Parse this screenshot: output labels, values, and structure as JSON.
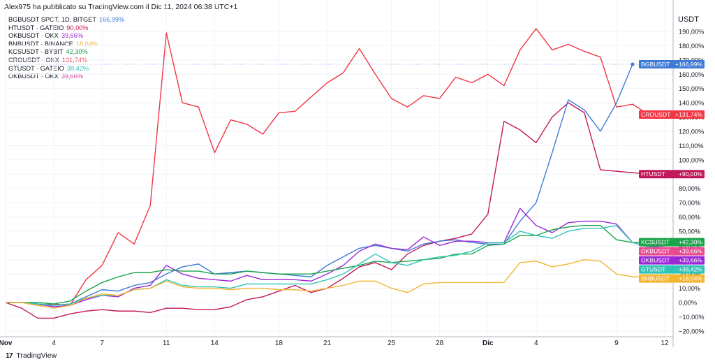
{
  "header": {
    "publisher_line": "Alex975 ha pubblicato su TradingView.com il Dic 11, 2024 06:38 UTC+1"
  },
  "legend": [
    {
      "name": "BGBUSDT SPOT, 1D, BITGET",
      "value": "166,99%",
      "color": "#3e7bd6"
    },
    {
      "name": "HTUSDT · GATEIO",
      "value": "90,00%",
      "color": "#c2185b"
    },
    {
      "name": "OKBUSDT · OKX",
      "value": "39,66%",
      "color": "#9c27d6"
    },
    {
      "name": "BNBUSDT · BINANCE",
      "value": "18,04%",
      "color": "#f5b531"
    },
    {
      "name": "KCSUSDT · BYBIT",
      "value": "42,30%",
      "color": "#1aa34a"
    },
    {
      "name": "CROUSDT · OKX",
      "value": "131,74%",
      "color": "#f23645"
    },
    {
      "name": "GTUSDT · GATEIO",
      "value": "38,42%",
      "color": "#2ec4b6"
    },
    {
      "name": "OKBUSDT · OKX",
      "value": "39,66%",
      "color": "#d3308f"
    }
  ],
  "footer": {
    "logo": "17",
    "brand": "TradingView"
  },
  "chart_data": {
    "type": "line",
    "y_unit_label": "USDT",
    "y_axis": {
      "min": -25,
      "max": 200,
      "ticks": [
        -20,
        -10,
        0,
        10,
        20,
        30,
        40,
        50,
        60,
        70,
        80,
        90,
        100,
        110,
        120,
        130,
        140,
        150,
        160,
        170,
        180,
        190
      ],
      "tick_labels": [
        "−20,00%",
        "−10,00%",
        "0,00%",
        "10,00%",
        "20,00%",
        "30,00%",
        "40,00%",
        "50,00%",
        "60,00%",
        "70,00%",
        "80,00%",
        "90,00%",
        "100,00%",
        "110,00%",
        "120,00%",
        "130,00%",
        "140,00%",
        "150,00%",
        "160,00%",
        "170,00%",
        "180,00%",
        "190,00%"
      ]
    },
    "x_axis": {
      "min": 0,
      "max": 41,
      "ticks": [
        {
          "day": 0,
          "label": "Nov"
        },
        {
          "day": 3,
          "label": "4"
        },
        {
          "day": 6,
          "label": "7"
        },
        {
          "day": 10,
          "label": "11"
        },
        {
          "day": 13,
          "label": "14"
        },
        {
          "day": 17,
          "label": "18"
        },
        {
          "day": 20,
          "label": "21"
        },
        {
          "day": 24,
          "label": "25"
        },
        {
          "day": 27,
          "label": "28"
        },
        {
          "day": 30,
          "label": "Dic"
        },
        {
          "day": 33,
          "label": "4"
        },
        {
          "day": 38,
          "label": "9"
        },
        {
          "day": 41,
          "label": "12"
        }
      ]
    },
    "crosshair_value": 166.99,
    "series": [
      {
        "name": "CROUSDT",
        "color": "#f23645",
        "values": [
          0,
          0,
          -2,
          -1,
          -2,
          16,
          26,
          49,
          41,
          68,
          189,
          140,
          137,
          105,
          128,
          125,
          118,
          133,
          134,
          144,
          154,
          161,
          178,
          160,
          143,
          137,
          145,
          143,
          158,
          154,
          160,
          152,
          177,
          192,
          177,
          181,
          176,
          172,
          137,
          139,
          131.74
        ]
      },
      {
        "name": "HTUSDT",
        "color": "#c2185b",
        "values": [
          0,
          -4,
          -11,
          -11,
          -8,
          -6,
          -5,
          -6,
          -6,
          -7,
          -4,
          -4,
          -5,
          -5,
          -3,
          2,
          4,
          8,
          12,
          7,
          10,
          17,
          25,
          28,
          23,
          34,
          40,
          43,
          45,
          48,
          62,
          127,
          121,
          112,
          130,
          140,
          133,
          93,
          92,
          91,
          90.0
        ]
      },
      {
        "name": "BGBUSDT",
        "color": "#3e7bd6",
        "values": [
          0,
          0,
          -1,
          -2,
          -1,
          4,
          9,
          8,
          12,
          14,
          20,
          25,
          27,
          20,
          21,
          22,
          21,
          20,
          19,
          18,
          26,
          32,
          38,
          40,
          38,
          36,
          41,
          43,
          44,
          42,
          41,
          41,
          57,
          70,
          105,
          142,
          135,
          120,
          140,
          166.99
        ]
      },
      {
        "name": "OKBUSDT",
        "color": "#9c27d6",
        "values": [
          0,
          0,
          -1,
          -3,
          -2,
          2,
          5,
          4,
          10,
          12,
          26,
          20,
          17,
          16,
          15,
          19,
          16,
          16,
          16,
          15,
          20,
          26,
          36,
          41,
          38,
          37,
          46,
          40,
          43,
          43,
          42,
          42,
          66,
          54,
          49,
          56,
          57,
          57,
          55,
          42,
          39,
          39.66
        ]
      },
      {
        "name": "KCSUSDT",
        "color": "#1aa34a",
        "values": [
          0,
          0,
          0,
          -1,
          1,
          8,
          14,
          18,
          21,
          21,
          23,
          22,
          22,
          20,
          20,
          22,
          21,
          20,
          20,
          20,
          22,
          24,
          26,
          29,
          28,
          29,
          30,
          31,
          34,
          34,
          40,
          41,
          47,
          47,
          51,
          53,
          54,
          54,
          44,
          42,
          42.3
        ]
      },
      {
        "name": "GTUSDT",
        "color": "#2ec4b6",
        "values": [
          0,
          0,
          -1,
          -2,
          -1,
          3,
          5,
          5,
          9,
          10,
          16,
          12,
          11,
          11,
          10,
          13,
          13,
          13,
          13,
          13,
          16,
          20,
          27,
          34,
          28,
          26,
          30,
          32,
          33,
          36,
          42,
          42,
          50,
          47,
          45,
          50,
          52,
          52,
          54,
          42,
          39,
          38.42
        ]
      },
      {
        "name": "BNBUSDT",
        "color": "#f5b531",
        "values": [
          0,
          0,
          -2,
          -4,
          -2,
          3,
          6,
          5,
          9,
          10,
          15,
          11,
          10,
          10,
          9,
          10,
          10,
          9,
          9,
          8,
          10,
          12,
          15,
          15,
          10,
          7,
          13,
          14,
          14,
          14,
          14,
          14,
          28,
          29,
          25,
          27,
          30,
          29,
          20,
          18,
          18.04
        ]
      }
    ],
    "end_labels": [
      {
        "name": "BGBUSDT",
        "value_text": "+166,99%",
        "value": 166.99,
        "color": "#3e7bd6"
      },
      {
        "name": "CROUSDT",
        "value_text": "+131,74%",
        "value": 131.74,
        "color": "#f23645"
      },
      {
        "name": "HTUSDT",
        "value_text": "+90,00%",
        "value": 90.0,
        "color": "#c2185b"
      },
      {
        "name": "KCSUSDT",
        "value_text": "+42,30%",
        "value": 42.3,
        "color": "#1aa34a"
      },
      {
        "name": "OKBUSDT",
        "value_text": "+39,66%",
        "value": 39.66,
        "color": "#e84a8f"
      },
      {
        "name": "OKBUSDT",
        "value_text": "+39,66%",
        "value": 39.66,
        "color": "#9c27d6"
      },
      {
        "name": "GTUSDT",
        "value_text": "+38,42%",
        "value": 38.42,
        "color": "#2ec4b6"
      },
      {
        "name": "BNBUSDT",
        "value_text": "+18,04%",
        "value": 18.04,
        "color": "#f5b531"
      }
    ],
    "grid": true
  }
}
